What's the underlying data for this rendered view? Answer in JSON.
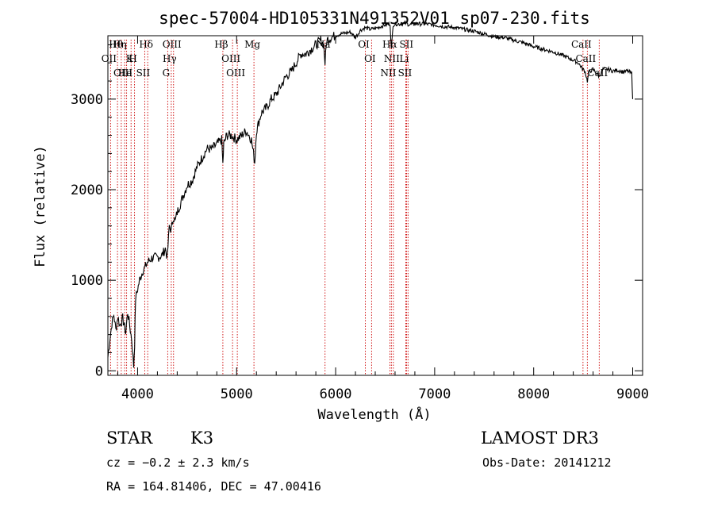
{
  "chart_data": {
    "type": "line",
    "title": "spec-57004-HD105331N491352V01_sp07-230.fits",
    "xlabel": "Wavelength (Å)",
    "ylabel": "Flux (relative)",
    "xlim": [
      3700,
      9100
    ],
    "ylim": [
      -50,
      3700
    ],
    "xticks": [
      4000,
      5000,
      6000,
      7000,
      8000,
      9000
    ],
    "yticks": [
      0,
      1000,
      2000,
      3000
    ],
    "grid": false,
    "line_color": "#000000",
    "marker_color": "#cc0000",
    "series": [
      {
        "x": [
          3700,
          3720,
          3740,
          3760,
          3780,
          3800,
          3820,
          3850,
          3880,
          3900,
          3920,
          3940,
          3960,
          3970,
          3980,
          4000,
          4020,
          4050,
          4080,
          4100,
          4150,
          4200,
          4250,
          4280,
          4300,
          4320,
          4340,
          4360,
          4380,
          4400,
          4450,
          4500,
          4550,
          4600,
          4650,
          4700,
          4750,
          4800,
          4850,
          4861,
          4870,
          4900,
          4950,
          5000,
          5050,
          5100,
          5150,
          5170,
          5183,
          5200,
          5250,
          5300,
          5350,
          5400,
          5450,
          5500,
          5550,
          5600,
          5650,
          5700,
          5750,
          5800,
          5850,
          5880,
          5893,
          5910,
          5950,
          6000,
          6050,
          6100,
          6150,
          6200,
          6250,
          6300,
          6350,
          6400,
          6450,
          6500,
          6550,
          6563,
          6580,
          6600,
          6650,
          6700,
          6750,
          6800,
          6850,
          6900,
          7000,
          7100,
          7200,
          7300,
          7400,
          7500,
          7600,
          7700,
          7800,
          7900,
          8000,
          8100,
          8200,
          8300,
          8400,
          8450,
          8498,
          8520,
          8542,
          8560,
          8600,
          8662,
          8700,
          8750,
          8800,
          8850,
          8900,
          8950,
          8990,
          9000
        ],
        "y": [
          150,
          350,
          520,
          620,
          450,
          600,
          500,
          580,
          420,
          650,
          500,
          350,
          50,
          300,
          800,
          900,
          1000,
          1100,
          1150,
          1200,
          1250,
          1250,
          1280,
          1350,
          1250,
          1600,
          1550,
          1700,
          1650,
          1750,
          1900,
          2050,
          2100,
          2250,
          2350,
          2450,
          2450,
          2500,
          2550,
          2280,
          2500,
          2600,
          2600,
          2550,
          2600,
          2650,
          2550,
          2400,
          2300,
          2650,
          2850,
          2900,
          3000,
          3050,
          3150,
          3250,
          3300,
          3400,
          3500,
          3500,
          3550,
          3600,
          3650,
          3600,
          3400,
          3650,
          3680,
          3700,
          3720,
          3730,
          3740,
          3680,
          3760,
          3790,
          3770,
          3780,
          3800,
          3820,
          3830,
          3550,
          3820,
          3830,
          3830,
          3840,
          3820,
          3830,
          3830,
          3830,
          3820,
          3800,
          3790,
          3770,
          3750,
          3720,
          3690,
          3680,
          3650,
          3620,
          3580,
          3550,
          3520,
          3480,
          3430,
          3400,
          3330,
          3300,
          3200,
          3300,
          3330,
          3250,
          3330,
          3330,
          3310,
          3320,
          3300,
          3310,
          3280,
          3000
        ]
      }
    ],
    "lines": [
      {
        "label": "Hθ",
        "x": 3797
      },
      {
        "label": "OII",
        "x": 3727
      },
      {
        "label": "OIII",
        "x": 3869
      },
      {
        "label": "K",
        "x": 3934
      },
      {
        "label": "H",
        "x": 3969
      },
      {
        "label": "He",
        "x": 3889
      },
      {
        "label": "Hη",
        "x": 3835
      },
      {
        "label": "Hδ",
        "x": 4102
      },
      {
        "label": "SII",
        "x": 4072
      },
      {
        "label": "OIII",
        "x": 4363
      },
      {
        "label": "Hγ",
        "x": 4340
      },
      {
        "label": "G",
        "x": 4304
      },
      {
        "label": "Hβ",
        "x": 4861
      },
      {
        "label": "OIII",
        "x": 4959
      },
      {
        "label": "OIII",
        "x": 5007
      },
      {
        "label": "Mg",
        "x": 5175
      },
      {
        "label": "Na",
        "x": 5893
      },
      {
        "label": "OI",
        "x": 6300
      },
      {
        "label": "OI",
        "x": 6363
      },
      {
        "label": "Hα",
        "x": 6563
      },
      {
        "label": "NII",
        "x": 6548
      },
      {
        "label": "NII",
        "x": 6583
      },
      {
        "label": "Li",
        "x": 6708
      },
      {
        "label": "SII",
        "x": 6716
      },
      {
        "label": "SII",
        "x": 6731
      },
      {
        "label": "CaII",
        "x": 8498
      },
      {
        "label": "CaII",
        "x": 8542
      },
      {
        "label": "CaII",
        "x": 8662
      }
    ]
  },
  "info": {
    "object_class": "STAR",
    "subclass": "K3",
    "survey": "LAMOST DR3",
    "cz": "cz = −0.2 ± 2.3 km/s",
    "obs_date": "Obs-Date: 20141212",
    "coords": "RA = 164.81406, DEC =  47.00416"
  }
}
